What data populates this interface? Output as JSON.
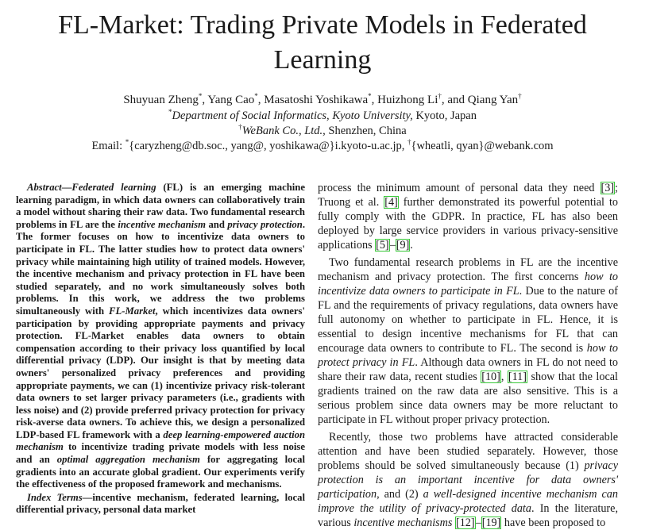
{
  "title": "FL-Market: Trading Private Models in Federated Learning",
  "authors": {
    "a1": "Shuyuan Zheng",
    "a1_mark": "*",
    "a2": "Yang Cao",
    "a2_mark": "*",
    "a3": "Masatoshi Yoshikawa",
    "a3_mark": "*",
    "a4": "Huizhong Li",
    "a4_mark": "†",
    "a5_prefix": "and",
    "a5": "Qiang Yan",
    "a5_mark": "†"
  },
  "affiliations": {
    "aff1_mark": "*",
    "aff1_a": "Department of Social Informatics,",
    "aff1_b": "Kyoto University,",
    "aff1_c": "Kyoto, Japan",
    "aff2_mark": "†",
    "aff2_a": "WeBank Co., Ltd.,",
    "aff2_b": "Shenzhen, China",
    "email_label": "Email:",
    "email_mark1": "*",
    "email_1": "{caryzheng@db.soc., yang@, yoshikawa@}i.kyoto-u.ac.jp,",
    "email_mark2": "†",
    "email_2": "{wheatli, qyan}@webank.com"
  },
  "abstract": {
    "label": "Abstract",
    "dash": "—",
    "s1": "Federated learning",
    "s2": " (FL) is an emerging machine learning paradigm, in which data owners can collaboratively train a model without sharing their raw data. Two fundamental research problems in FL are the ",
    "s3": "incentive mechanism",
    "s4": " and ",
    "s5": "privacy protection",
    "s6": ". The former focuses on how to incentivize data owners to participate in FL. The latter studies how to protect data owners' privacy while maintaining high utility of trained models. However, the incentive mechanism and privacy protection in FL have been studied separately, and no work simultaneously solves both problems. In this work, we address the two problems simultaneously with ",
    "s7": "FL-Market",
    "s8": ", which incentivizes data owners' participation by providing appropriate payments and privacy protection. FL-Market enables data owners to obtain compensation according to their privacy loss quantified by local differential privacy (LDP). Our insight is that by meeting data owners' personalized privacy preferences and providing appropriate payments, we can (1) incentivize privacy risk-tolerant data owners to set larger privacy parameters (i.e., gradients with less noise) and (2) provide preferred privacy protection for privacy risk-averse data owners. To achieve this, we design a personalized LDP-based FL framework with a ",
    "s9": "deep learning-empowered auction mechanism",
    "s10": " to incentivize trading private models with less noise and an ",
    "s11": "optimal aggregation mechanism",
    "s12": " for aggregating local gradients into an accurate global gradient. Our experiments verify the effectiveness of the proposed framework and mechanisms."
  },
  "index_terms": {
    "label": "Index Terms",
    "dash": "—",
    "text": "incentive mechanism, federated learning, local differential privacy, personal data market"
  },
  "body": {
    "p1_a": "process the minimum amount of personal data they need ",
    "c3": "[3]",
    "p1_b": "; Truong et al. ",
    "c4": "[4]",
    "p1_c": " further demonstrated its powerful potential to fully comply with the GDPR. In practice, FL has also been deployed by large service providers in various privacy-sensitive applications ",
    "c5": "[5]",
    "dash": "–",
    "c9": "[9]",
    "p1_end": ".",
    "p2_a": "Two fundamental research problems in FL are the incentive mechanism and privacy protection. The first concerns ",
    "p2_b": "how to incentivize data owners to participate in FL",
    "p2_c": ". Due to the nature of FL and the requirements of privacy regulations, data owners have full autonomy on whether to participate in FL. Hence, it is essential to design incentive mechanisms for FL that can encourage data owners to contribute to FL. The second is ",
    "p2_d": "how to protect privacy in FL",
    "p2_e": ". Although data owners in FL do not need to share their raw data, recent studies ",
    "c10": "[10]",
    "comma": ", ",
    "c11": "[11]",
    "p2_f": " show that the local gradients trained on the raw data are also sensitive. This is a serious problem since data owners may be more reluctant to participate in FL without proper privacy protection.",
    "p3_a": "Recently, those two problems have attracted considerable attention and have been studied separately. However, those problems should be solved simultaneously because (1) ",
    "p3_b": "privacy protection is an important incentive for data owners' participation",
    "p3_c": ", and (2) ",
    "p3_d": "a well-designed incentive mechanism can improve the utility of privacy-protected data",
    "p3_e": ". In the literature, various ",
    "p3_f": "incentive mechanisms",
    "p3_g": " ",
    "c12": "[12]",
    "c19": "[19]",
    "p3_h": " have been proposed to"
  }
}
